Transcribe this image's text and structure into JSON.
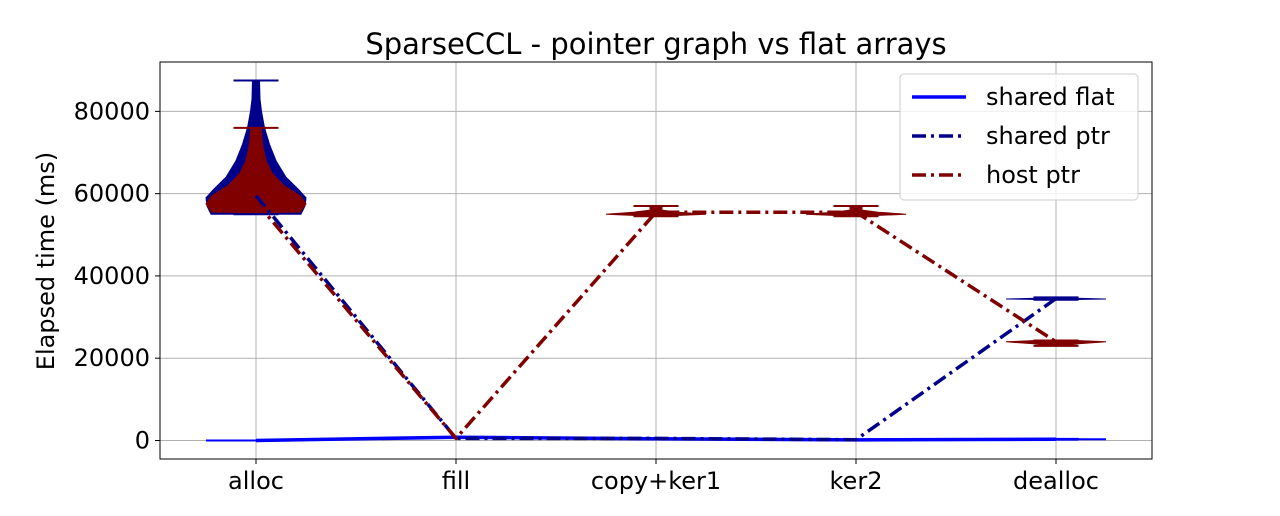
{
  "chart_data": {
    "type": "line",
    "title": "SparseCCL - pointer graph vs flat arrays",
    "xlabel": "",
    "ylabel": "Elapsed time (ms)",
    "categories": [
      "alloc",
      "fill",
      "copy+ker1",
      "ker2",
      "dealloc"
    ],
    "ylim": [
      -4500,
      92000
    ],
    "yticks": [
      0,
      20000,
      40000,
      60000,
      80000
    ],
    "ytick_labels": [
      "0",
      "20000",
      "40000",
      "60000",
      "80000"
    ],
    "grid": true,
    "legend_position": "top-right",
    "series": [
      {
        "name": "shared flat",
        "style": "solid",
        "color": "#0000ff",
        "values": [
          0,
          800,
          400,
          150,
          300
        ]
      },
      {
        "name": "shared ptr",
        "style": "dashdot",
        "color": "#00008b",
        "values": [
          59500,
          500,
          500,
          200,
          34500
        ]
      },
      {
        "name": "host ptr",
        "style": "dashdot",
        "color": "#800000",
        "values": [
          58000,
          500,
          55500,
          55500,
          24000
        ]
      }
    ],
    "violins": [
      {
        "series": "shared ptr",
        "color": "#00008b",
        "category": "alloc",
        "min": 55000,
        "max": 87500,
        "profile": [
          [
            55000,
            0.9
          ],
          [
            57000,
            0.98
          ],
          [
            59000,
            1.0
          ],
          [
            61000,
            0.85
          ],
          [
            64000,
            0.6
          ],
          [
            68000,
            0.4
          ],
          [
            72000,
            0.27
          ],
          [
            76000,
            0.17
          ],
          [
            80000,
            0.11
          ],
          [
            83000,
            0.08
          ],
          [
            87500,
            0.07
          ]
        ]
      },
      {
        "series": "host ptr",
        "color": "#800000",
        "category": "alloc",
        "min": 55500,
        "max": 76000,
        "profile": [
          [
            55500,
            0.88
          ],
          [
            57500,
            1.0
          ],
          [
            59500,
            0.88
          ],
          [
            62000,
            0.55
          ],
          [
            65000,
            0.32
          ],
          [
            68000,
            0.2
          ],
          [
            72000,
            0.13
          ],
          [
            76000,
            0.1
          ]
        ]
      },
      {
        "series": "host ptr",
        "color": "#800000",
        "category": "copy+ker1",
        "min": 54500,
        "max": 57000,
        "profile": [
          [
            54500,
            0.05
          ],
          [
            55000,
            1.0
          ],
          [
            55500,
            0.45
          ],
          [
            56000,
            0.12
          ],
          [
            56500,
            0.12
          ],
          [
            57000,
            0.12
          ]
        ]
      },
      {
        "series": "host ptr",
        "color": "#800000",
        "category": "ker2",
        "min": 54500,
        "max": 57000,
        "profile": [
          [
            54500,
            0.05
          ],
          [
            55000,
            1.0
          ],
          [
            55500,
            0.45
          ],
          [
            56000,
            0.12
          ],
          [
            56500,
            0.12
          ],
          [
            57000,
            0.12
          ]
        ]
      },
      {
        "series": "host ptr",
        "color": "#800000",
        "category": "dealloc",
        "min": 23000,
        "max": 24300,
        "profile": [
          [
            23000,
            0.15
          ],
          [
            23500,
            0.45
          ],
          [
            24000,
            1.0
          ],
          [
            24300,
            0.4
          ]
        ]
      },
      {
        "series": "shared ptr",
        "color": "#00008b",
        "category": "dealloc",
        "min": 34200,
        "max": 34800,
        "profile": [
          [
            34200,
            0.05
          ],
          [
            34400,
            1.0
          ],
          [
            34600,
            0.3
          ],
          [
            34800,
            0.1
          ]
        ]
      },
      {
        "series": "shared flat",
        "color": "#0000ff",
        "category": "dealloc",
        "min": 200,
        "max": 400,
        "profile": [
          [
            200,
            0.05
          ],
          [
            300,
            1.0
          ],
          [
            400,
            0.05
          ]
        ]
      }
    ]
  }
}
